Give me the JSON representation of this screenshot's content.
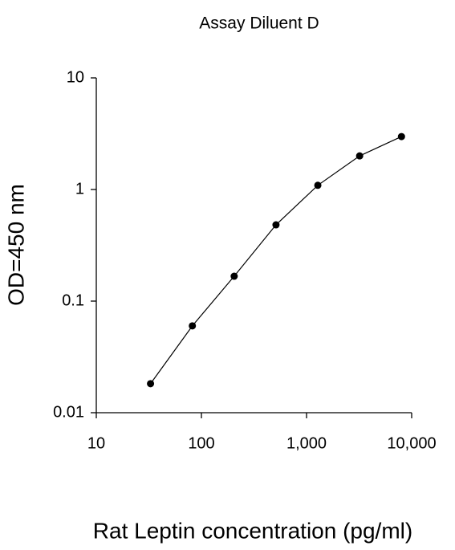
{
  "chart_data": {
    "type": "line",
    "title": "Assay Diluent D",
    "x_label": "Rat Leptin concentration (pg/ml)",
    "y_label": "OD=450 nm",
    "x": [
      32.8,
      82,
      205,
      512,
      1280,
      3200,
      8000
    ],
    "series": [
      {
        "color": "#000000",
        "values": [
          0.0182,
          0.06,
          0.167,
          0.482,
          1.09,
          2.0,
          2.98
        ]
      }
    ],
    "x_log": true,
    "y_log": true,
    "xlim": [
      10,
      10000
    ],
    "ylim": [
      0.01,
      10
    ],
    "xticks": [
      10,
      100,
      {
        "value": 1000,
        "label": "1,000"
      },
      {
        "value": 10000,
        "label": "10,000"
      }
    ],
    "yticks": [
      0.01,
      0.1,
      1,
      10
    ]
  }
}
